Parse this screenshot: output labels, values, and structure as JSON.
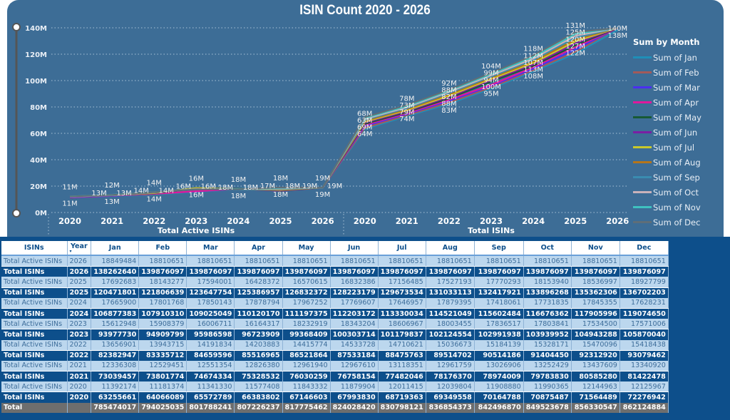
{
  "chart_data": {
    "type": "line",
    "title": "ISIN Count 2020 - 2026",
    "legend_title": "Sum by Month",
    "legend_placement": "right",
    "ylim": [
      0,
      140000000
    ],
    "yticks": [
      "0M",
      "20M",
      "40M",
      "60M",
      "80M",
      "100M",
      "120M",
      "140M"
    ],
    "ytick_values": [
      0,
      20000000,
      40000000,
      60000000,
      80000000,
      100000000,
      120000000,
      140000000
    ],
    "groups": [
      {
        "label": "Total Active ISINs",
        "categories": [
          "2020",
          "2021",
          "2022",
          "2023",
          "2024",
          "2025",
          "2026"
        ]
      },
      {
        "label": "Total ISINs",
        "categories": [
          "2020",
          "2021",
          "2022",
          "2023",
          "2024",
          "2025",
          "2026"
        ]
      }
    ],
    "series": [
      {
        "name": "Sum of Jan",
        "color": "#1f8fb8"
      },
      {
        "name": "Sum of Feb",
        "color": "#a35a5a"
      },
      {
        "name": "Sum of Mar",
        "color": "#4b2ff0"
      },
      {
        "name": "Sum of Apr",
        "color": "#e0189c"
      },
      {
        "name": "Sum of May",
        "color": "#175a34"
      },
      {
        "name": "Sum of Jun",
        "color": "#7a1fa3"
      },
      {
        "name": "Sum of Jul",
        "color": "#c9c92a"
      },
      {
        "name": "Sum of Aug",
        "color": "#b5751a"
      },
      {
        "name": "Sum of Sep",
        "color": "#3a8cb0"
      },
      {
        "name": "Sum of Oct",
        "color": "#c9b2ba"
      },
      {
        "name": "Sum of Nov",
        "color": "#3fc2c0"
      },
      {
        "name": "Sum of Dec",
        "color": "#5f6e78"
      }
    ],
    "data_labels": [
      [
        "11M",
        "11M"
      ],
      [
        "12M",
        "13M",
        "13M",
        "13M"
      ],
      [
        "14M",
        "14M",
        "14M",
        "14M"
      ],
      [
        "16M",
        "16M",
        "16M",
        "16M"
      ],
      [
        "18M",
        "18M",
        "18M",
        "18M"
      ],
      [
        "18M",
        "17M",
        "18M",
        "18M"
      ],
      [
        "19M",
        "19M",
        "19M",
        "19M"
      ],
      [
        "68M",
        "63M",
        "69M",
        "64M"
      ],
      [
        "78M",
        "73M",
        "79M",
        "74M"
      ],
      [
        "92M",
        "88M",
        "82M",
        "88M",
        "83M"
      ],
      [
        "104M",
        "99M",
        "94M",
        "100M",
        "95M"
      ],
      [
        "118M",
        "112M",
        "107M",
        "113M",
        "108M"
      ],
      [
        "131M",
        "125M",
        "120M",
        "127M",
        "122M"
      ],
      [
        "140M",
        "138M"
      ]
    ]
  },
  "table": {
    "headers": [
      "ISINs",
      "Year",
      "Jan",
      "Feb",
      "Mar",
      "Apr",
      "May",
      "Jun",
      "Jul",
      "Aug",
      "Sep",
      "Oct",
      "Nov",
      "Dec"
    ],
    "rows": [
      {
        "isins": "Total Active ISINs",
        "year": "2026",
        "values": [
          "18849484",
          "18810651",
          "18810651",
          "18810651",
          "18810651",
          "18810651",
          "18810651",
          "18810651",
          "18810651",
          "18810651",
          "18810651",
          "18810651"
        ]
      },
      {
        "isins": "Total ISINs",
        "year": "2026",
        "values": [
          "138262640",
          "139876097",
          "139876097",
          "139876097",
          "139876097",
          "139876097",
          "139876097",
          "139876097",
          "139876097",
          "139876097",
          "139876097",
          "139876097"
        ]
      },
      {
        "isins": "Total Active ISINs",
        "year": "2025",
        "values": [
          "17692683",
          "18143277",
          "17594001",
          "16428372",
          "16570615",
          "16832386",
          "17156485",
          "17527193",
          "17770293",
          "18153940",
          "18536997",
          "18927799"
        ]
      },
      {
        "isins": "Total ISINs",
        "year": "2025",
        "values": [
          "120471801",
          "121806639",
          "123647754",
          "125386957",
          "126832372",
          "128223179",
          "129673534",
          "131033113",
          "132417921",
          "133896268",
          "135362306",
          "136702203"
        ]
      },
      {
        "isins": "Total Active ISINs",
        "year": "2024",
        "values": [
          "17665900",
          "17801768",
          "17850143",
          "17878794",
          "17967252",
          "17769607",
          "17646957",
          "17879395",
          "17418061",
          "17731835",
          "17845355",
          "17628231"
        ]
      },
      {
        "isins": "Total ISINs",
        "year": "2024",
        "values": [
          "106877383",
          "107910310",
          "109025049",
          "110120170",
          "111197375",
          "112203172",
          "113330034",
          "114521049",
          "115602484",
          "116676362",
          "117905996",
          "119074650"
        ]
      },
      {
        "isins": "Total Active ISINs",
        "year": "2023",
        "values": [
          "15612948",
          "15908379",
          "16006711",
          "16164317",
          "18232919",
          "18343204",
          "18606967",
          "18003455",
          "17836517",
          "17803841",
          "17534500",
          "17571006"
        ]
      },
      {
        "isins": "Total ISINs",
        "year": "2023",
        "values": [
          "93977730",
          "94909799",
          "95986598",
          "96723909",
          "99368409",
          "100303714",
          "101179837",
          "102124554",
          "102991938",
          "103939952",
          "104943288",
          "105870040"
        ]
      },
      {
        "isins": "Total Active ISINs",
        "year": "2022",
        "values": [
          "13656901",
          "13943715",
          "14191834",
          "14203883",
          "14415774",
          "14533728",
          "14710621",
          "15036673",
          "15184139",
          "15328171",
          "15470096",
          "15418438"
        ]
      },
      {
        "isins": "Total ISINs",
        "year": "2022",
        "values": [
          "82382947",
          "83335712",
          "84659596",
          "85516965",
          "86521864",
          "87533184",
          "88475763",
          "89514702",
          "90514186",
          "91404450",
          "92312920",
          "93079462"
        ]
      },
      {
        "isins": "Total Active ISINs",
        "year": "2021",
        "values": [
          "12336308",
          "12529451",
          "12551354",
          "12826380",
          "12961940",
          "12967610",
          "13118351",
          "12961759",
          "13026906",
          "13252429",
          "13437609",
          "13340920"
        ]
      },
      {
        "isins": "Total ISINs",
        "year": "2021",
        "values": [
          "73039457",
          "73801774",
          "74674334",
          "75328532",
          "76030259",
          "76758154",
          "77482046",
          "78176370",
          "78974009",
          "79783830",
          "80585280",
          "81422478"
        ]
      },
      {
        "isins": "Total Active ISINs",
        "year": "2020",
        "values": [
          "11392174",
          "11181374",
          "11341330",
          "11577408",
          "11843332",
          "11879904",
          "12011415",
          "12039804",
          "11908880",
          "11990365",
          "12144963",
          "12125967"
        ]
      },
      {
        "isins": "Total ISINs",
        "year": "2020",
        "values": [
          "63255661",
          "64066089",
          "65572789",
          "66383802",
          "67146603",
          "67993830",
          "68719363",
          "69349558",
          "70164788",
          "70875487",
          "71564489",
          "72276942"
        ]
      }
    ],
    "total": {
      "label": "Total",
      "values": [
        "785474017",
        "794025035",
        "801788241",
        "807226237",
        "817775462",
        "824028420",
        "830798121",
        "836854373",
        "842496870",
        "849523678",
        "856330547",
        "862124884"
      ]
    }
  }
}
